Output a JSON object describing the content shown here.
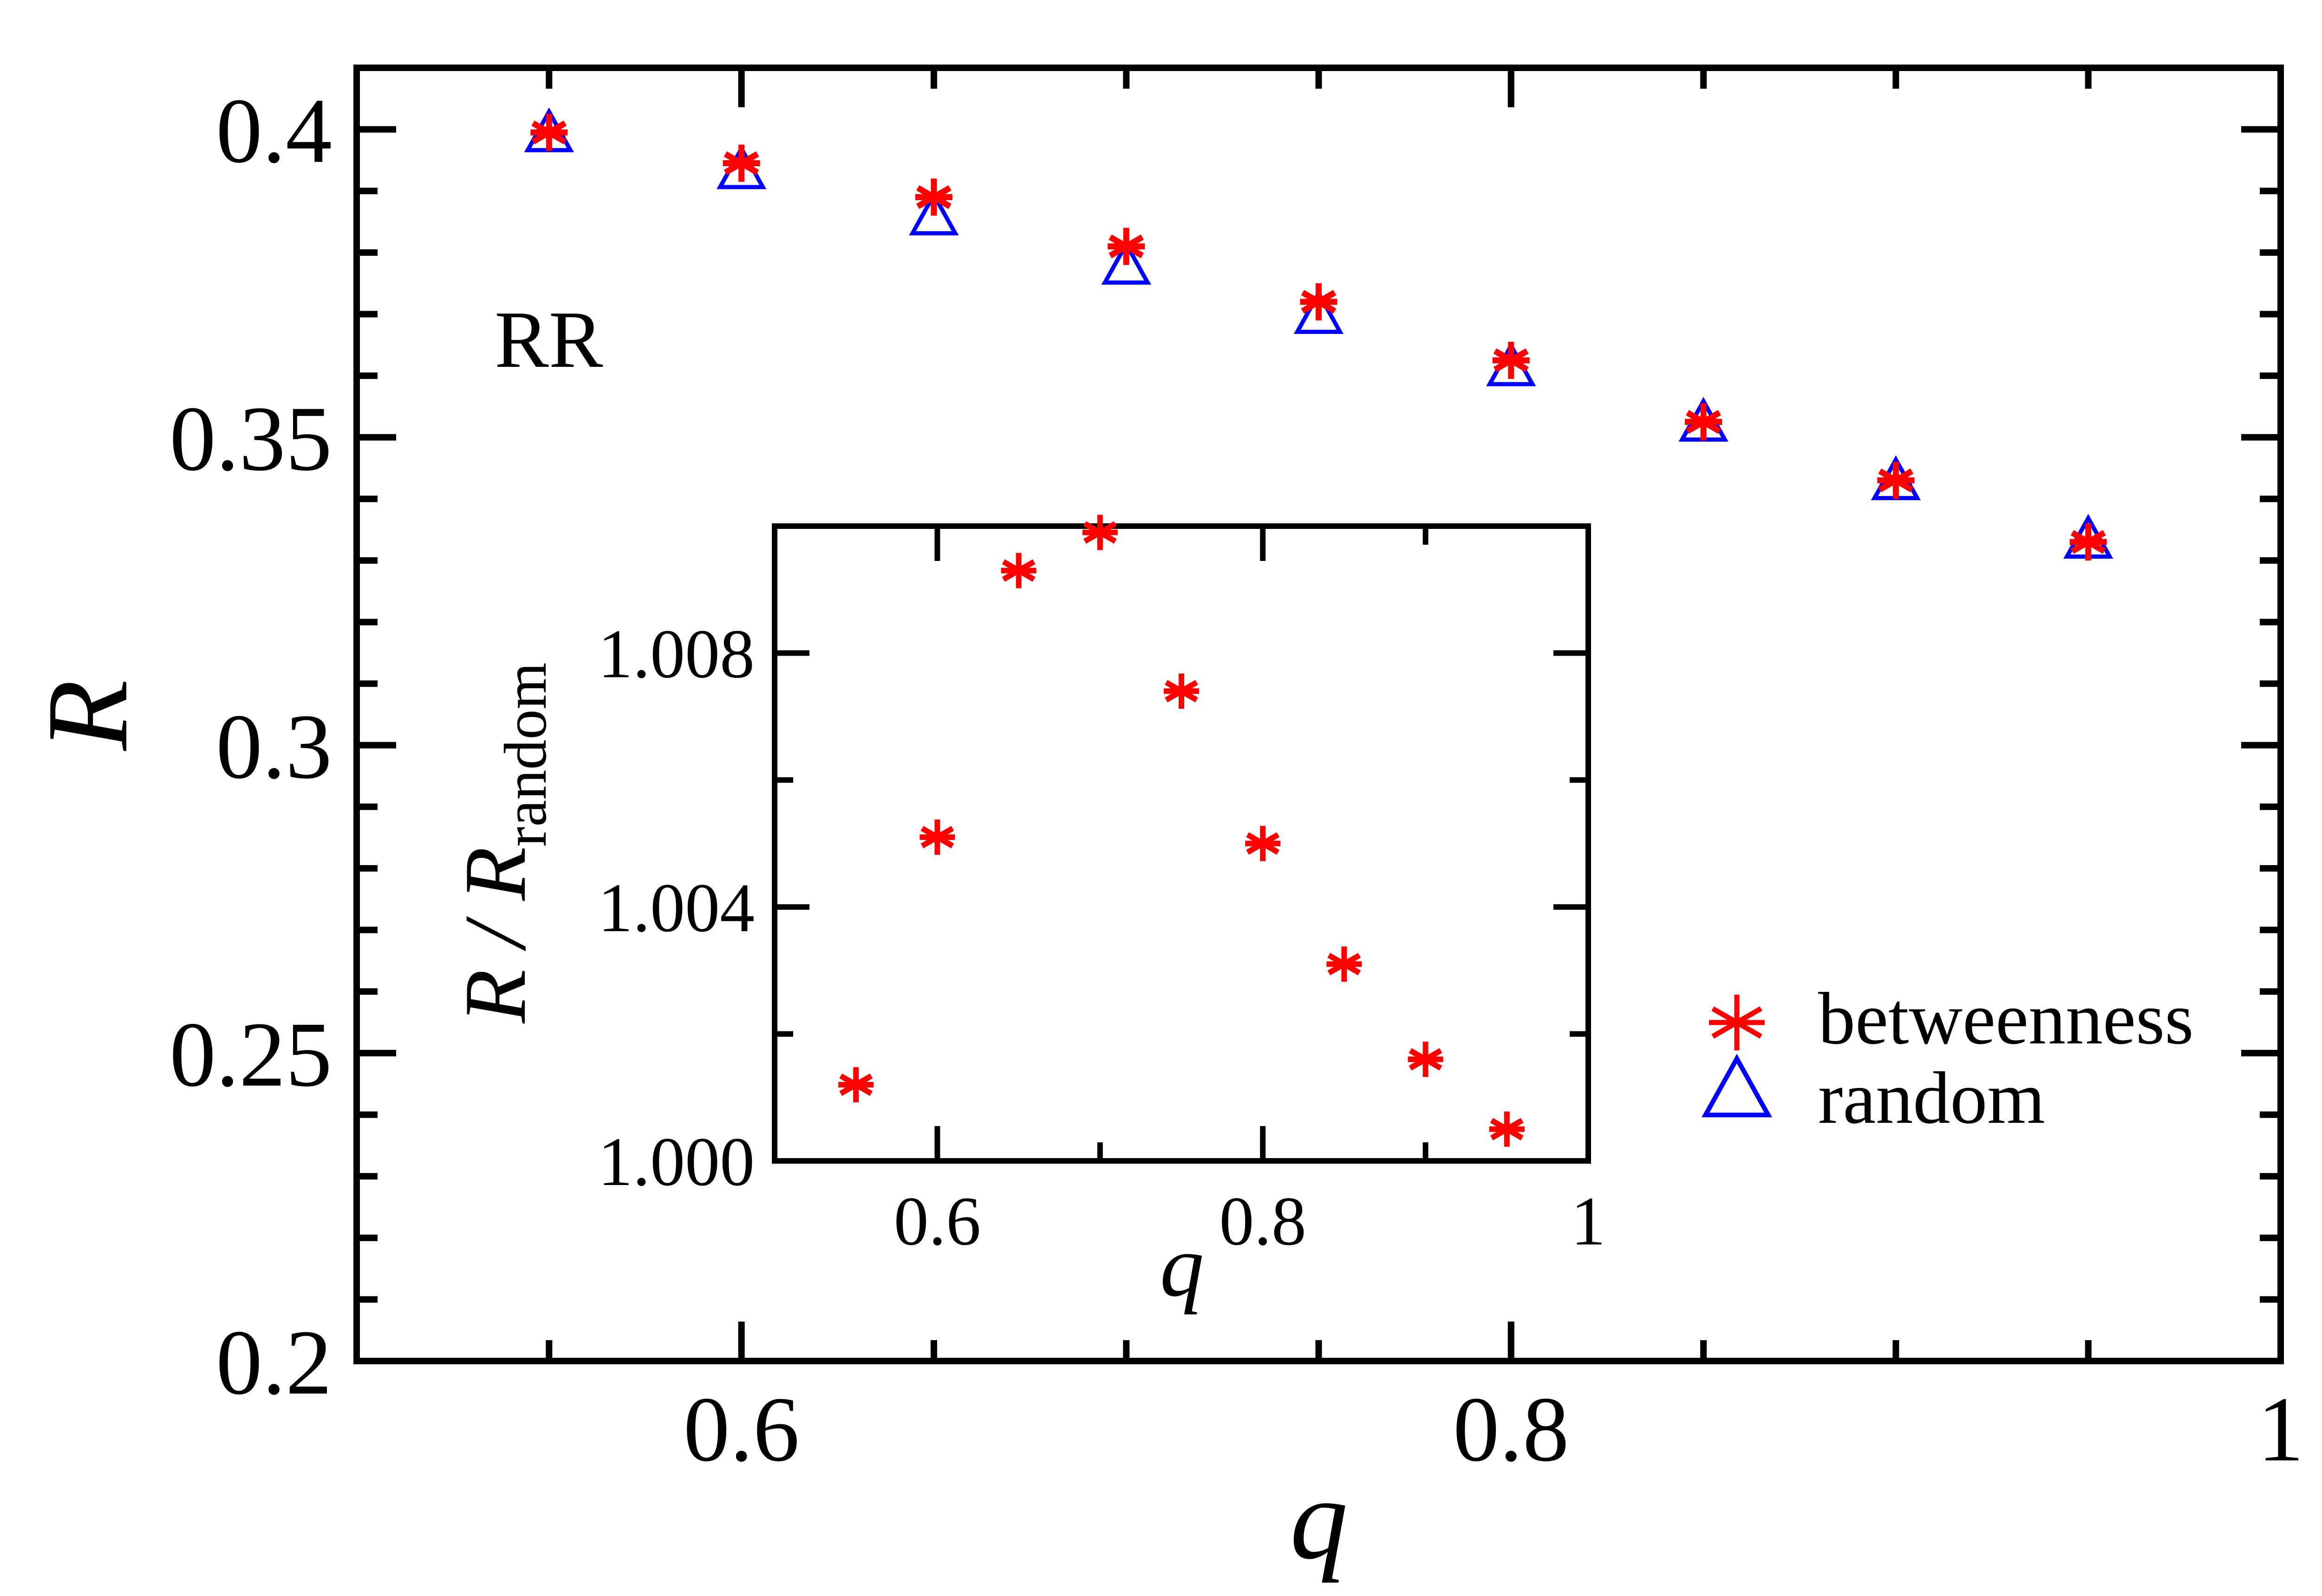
{
  "chart_data": [
    {
      "type": "scatter",
      "panel": "main",
      "xlabel": "q",
      "ylabel": "R",
      "annotation": "RR",
      "xlim": [
        0.5,
        1.0
      ],
      "ylim": [
        0.2,
        0.41
      ],
      "xticks": [
        0.6,
        0.8,
        1.0
      ],
      "xtick_labels": [
        "0.6",
        "0.8",
        "1"
      ],
      "yticks": [
        0.2,
        0.25,
        0.3,
        0.35,
        0.4
      ],
      "ytick_labels": [
        "0.2",
        "0.25",
        "0.3",
        "0.35",
        "0.4"
      ],
      "legend": "right",
      "series": [
        {
          "name": "betweenness",
          "marker": "asterisk",
          "color": "#ff0000",
          "x": [
            0.55,
            0.6,
            0.65,
            0.7,
            0.75,
            0.8,
            0.85,
            0.9,
            0.95
          ],
          "y": [
            0.3995,
            0.3945,
            0.389,
            0.381,
            0.372,
            0.3625,
            0.3525,
            0.343,
            0.333
          ]
        },
        {
          "name": "random",
          "marker": "triangle",
          "color": "#0000ff",
          "x": [
            0.55,
            0.6,
            0.65,
            0.7,
            0.75,
            0.8,
            0.85,
            0.9,
            0.95
          ],
          "y": [
            0.399,
            0.393,
            0.3855,
            0.3775,
            0.3695,
            0.361,
            0.352,
            0.3425,
            0.333
          ]
        }
      ]
    },
    {
      "type": "scatter",
      "panel": "inset",
      "xlabel": "q",
      "ylabel": "R / R",
      "ylabel_sub": "random",
      "xlim": [
        0.5,
        1.0
      ],
      "ylim": [
        1.0,
        1.01
      ],
      "xticks": [
        0.6,
        0.8,
        1.0
      ],
      "xtick_labels": [
        "0.6",
        "0.8",
        "1"
      ],
      "yticks": [
        1.0,
        1.004,
        1.008
      ],
      "ytick_labels": [
        "1.000",
        "1.004",
        "1.008"
      ],
      "series": [
        {
          "name": "betweenness / random",
          "marker": "asterisk",
          "color": "#ff0000",
          "x": [
            0.55,
            0.6,
            0.65,
            0.7,
            0.75,
            0.8,
            0.85,
            0.9,
            0.95
          ],
          "y": [
            1.0012,
            1.0051,
            1.0093,
            1.0099,
            1.0074,
            1.005,
            1.0031,
            1.0016,
            1.0005
          ]
        }
      ]
    }
  ]
}
